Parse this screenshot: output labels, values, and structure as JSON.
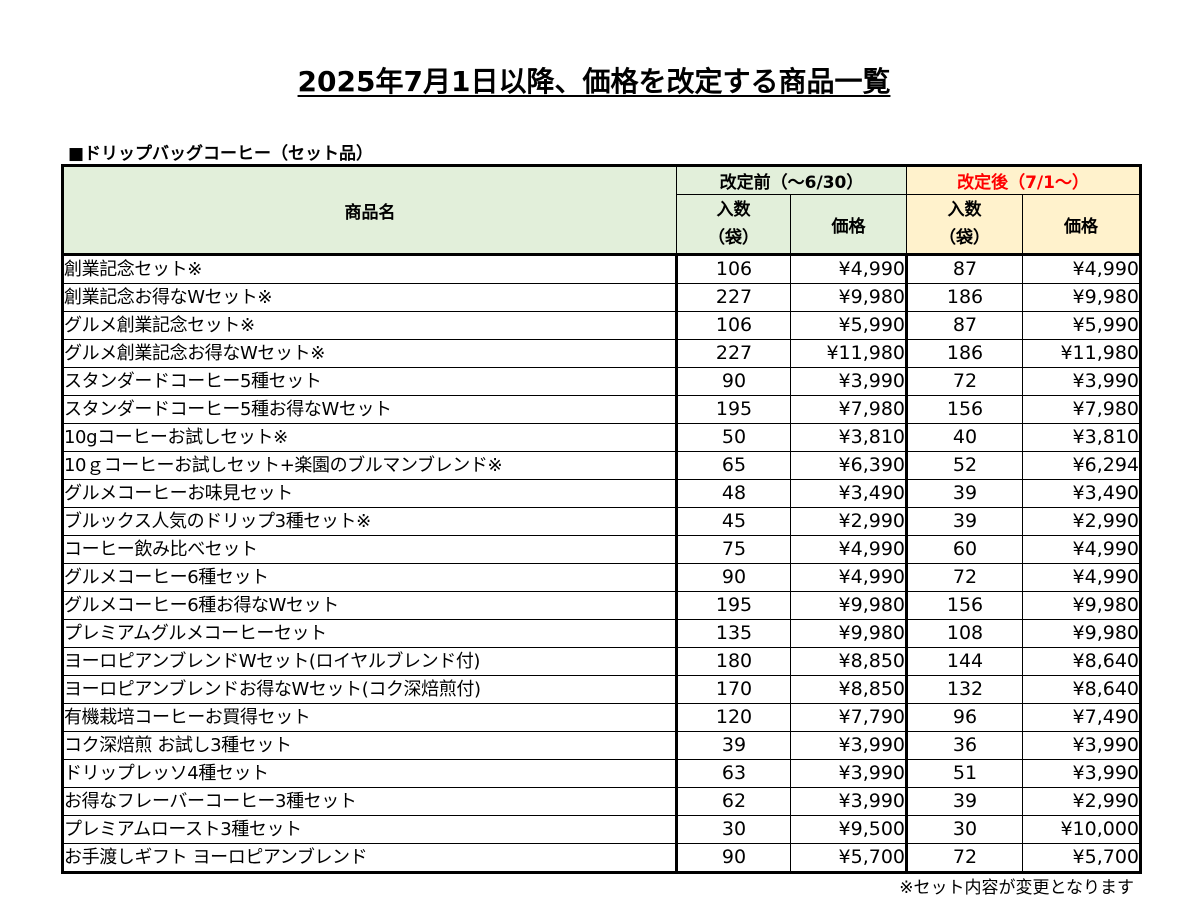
{
  "title": "2025年7月1日以降、価格を改定する商品一覧",
  "section_title": "■ドリップバッグコーヒー（セット品）",
  "table": {
    "header": {
      "product_name": "商品名",
      "before_group": "改定前（～6/30）",
      "after_group": "改定後（7/1～）",
      "qty_line1": "入数",
      "qty_line2": "（袋）",
      "price": "価格"
    },
    "rows": [
      {
        "name": "創業記念セット※",
        "qty_before": "106",
        "price_before": "¥4,990",
        "qty_after": "87",
        "price_after": "¥4,990"
      },
      {
        "name": "創業記念お得なWセット※",
        "qty_before": "227",
        "price_before": "¥9,980",
        "qty_after": "186",
        "price_after": "¥9,980"
      },
      {
        "name": "グルメ創業記念セット※",
        "qty_before": "106",
        "price_before": "¥5,990",
        "qty_after": "87",
        "price_after": "¥5,990"
      },
      {
        "name": "グルメ創業記念お得なWセット※",
        "qty_before": "227",
        "price_before": "¥11,980",
        "qty_after": "186",
        "price_after": "¥11,980"
      },
      {
        "name": "スタンダードコーヒー5種セット",
        "qty_before": "90",
        "price_before": "¥3,990",
        "qty_after": "72",
        "price_after": "¥3,990"
      },
      {
        "name": "スタンダードコーヒー5種お得なWセット",
        "qty_before": "195",
        "price_before": "¥7,980",
        "qty_after": "156",
        "price_after": "¥7,980"
      },
      {
        "name": "10gコーヒーお試しセット※",
        "qty_before": "50",
        "price_before": "¥3,810",
        "qty_after": "40",
        "price_after": "¥3,810"
      },
      {
        "name": "10ｇコーヒーお試しセット+楽園のブルマンブレンド※",
        "qty_before": "65",
        "price_before": "¥6,390",
        "qty_after": "52",
        "price_after": "¥6,294"
      },
      {
        "name": "グルメコーヒーお味見セット",
        "qty_before": "48",
        "price_before": "¥3,490",
        "qty_after": "39",
        "price_after": "¥3,490"
      },
      {
        "name": "ブルックス人気のドリップ3種セット※",
        "qty_before": "45",
        "price_before": "¥2,990",
        "qty_after": "39",
        "price_after": "¥2,990"
      },
      {
        "name": "コーヒー飲み比べセット",
        "qty_before": "75",
        "price_before": "¥4,990",
        "qty_after": "60",
        "price_after": "¥4,990"
      },
      {
        "name": "グルメコーヒー6種セット",
        "qty_before": "90",
        "price_before": "¥4,990",
        "qty_after": "72",
        "price_after": "¥4,990"
      },
      {
        "name": "グルメコーヒー6種お得なWセット",
        "qty_before": "195",
        "price_before": "¥9,980",
        "qty_after": "156",
        "price_after": "¥9,980"
      },
      {
        "name": "プレミアムグルメコーヒーセット",
        "qty_before": "135",
        "price_before": "¥9,980",
        "qty_after": "108",
        "price_after": "¥9,980"
      },
      {
        "name": "ヨーロピアンブレンドWセット(ロイヤルブレンド付)",
        "qty_before": "180",
        "price_before": "¥8,850",
        "qty_after": "144",
        "price_after": "¥8,640"
      },
      {
        "name": "ヨーロピアンブレンドお得なWセット(コク深焙煎付)",
        "qty_before": "170",
        "price_before": "¥8,850",
        "qty_after": "132",
        "price_after": "¥8,640"
      },
      {
        "name": "有機栽培コーヒーお買得セット",
        "qty_before": "120",
        "price_before": "¥7,790",
        "qty_after": "96",
        "price_after": "¥7,490"
      },
      {
        "name": "コク深焙煎 お試し3種セット",
        "qty_before": "39",
        "price_before": "¥3,990",
        "qty_after": "36",
        "price_after": "¥3,990"
      },
      {
        "name": "ドリップレッソ4種セット",
        "qty_before": "63",
        "price_before": "¥3,990",
        "qty_after": "51",
        "price_after": "¥3,990"
      },
      {
        "name": "お得なフレーバーコーヒー3種セット",
        "qty_before": "62",
        "price_before": "¥3,990",
        "qty_after": "39",
        "price_after": "¥2,990"
      },
      {
        "name": "プレミアムロースト3種セット",
        "qty_before": "30",
        "price_before": "¥9,500",
        "qty_after": "30",
        "price_after": "¥10,000"
      },
      {
        "name": "お手渡しギフト ヨーロピアンブレンド",
        "qty_before": "90",
        "price_before": "¥5,700",
        "qty_after": "72",
        "price_after": "¥5,700"
      }
    ]
  },
  "footnote": "※セット内容が変更となります",
  "colors": {
    "header_green": "#e2efda",
    "header_yellow": "#fff2cc",
    "after_label_red": "#ff0000"
  }
}
